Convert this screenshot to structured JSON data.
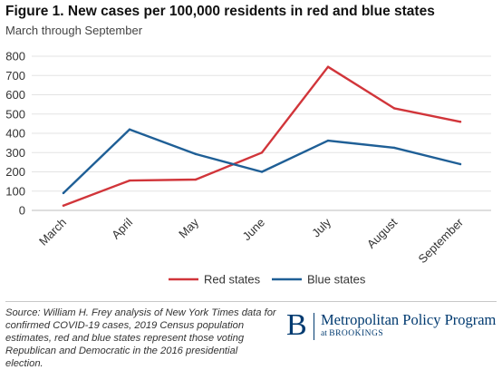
{
  "chart_data": {
    "type": "line",
    "title": "Figure 1. New cases per 100,000 residents in red and blue states",
    "subtitle": "March through September",
    "xlabel": "",
    "ylabel": "",
    "categories": [
      "March",
      "April",
      "May",
      "June",
      "July",
      "August",
      "September"
    ],
    "ylim": [
      0,
      800
    ],
    "yticks": [
      0,
      100,
      200,
      300,
      400,
      500,
      600,
      700,
      800
    ],
    "grid": "horizontal",
    "legend_position": "bottom",
    "series": [
      {
        "name": "Red states",
        "color": "#d1353a",
        "values": [
          25,
          155,
          160,
          300,
          745,
          530,
          460
        ]
      },
      {
        "name": "Blue states",
        "color": "#1f5f96",
        "values": [
          90,
          420,
          292,
          200,
          362,
          325,
          240
        ]
      }
    ]
  },
  "source": {
    "prefix": "Source: ",
    "text": "William H. Frey analysis of New York Times data for confirmed COVID-19 cases, 2019  Census population estimates, red and blue states represent those voting Republican and Democratic in the 2016 presidential election."
  },
  "brand": {
    "logo_letter": "B",
    "name": "Metropolitan Policy Program",
    "sub_prefix": "at ",
    "sub_org": "BROOKINGS",
    "color": "#003a70"
  }
}
